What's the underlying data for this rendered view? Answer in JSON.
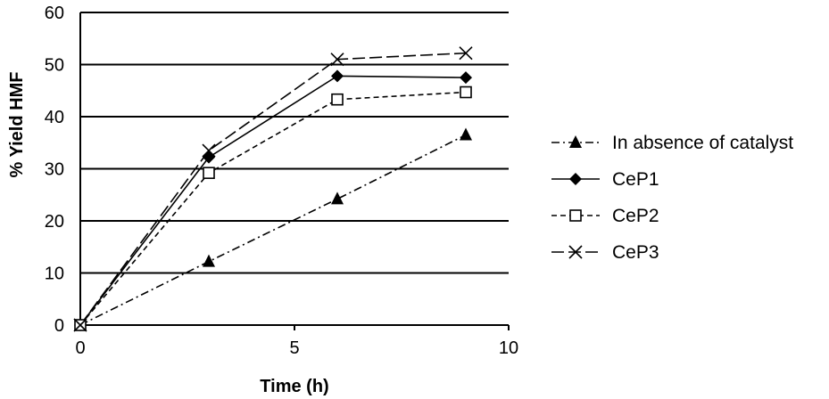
{
  "chart_data": {
    "type": "line",
    "title": "",
    "xlabel": "Time (h)",
    "ylabel": "% Yield HMF",
    "xlim": [
      0,
      10
    ],
    "ylim": [
      0,
      60
    ],
    "xticks": [
      "0",
      "5",
      "10"
    ],
    "yticks": [
      "0",
      "10",
      "20",
      "30",
      "40",
      "50",
      "60"
    ],
    "grid": "horizontal major gridlines",
    "legend_position": "right",
    "series": [
      {
        "name": "In absence of catalyst",
        "marker": "triangle",
        "line_style": "dash-dot",
        "x": [
          0,
          3,
          6,
          9
        ],
        "y": [
          0,
          12.2,
          24.2,
          36.5
        ]
      },
      {
        "name": "CeP1",
        "marker": "diamond",
        "line_style": "solid",
        "x": [
          0,
          3,
          6,
          9
        ],
        "y": [
          0,
          32.2,
          47.8,
          47.5
        ]
      },
      {
        "name": "CeP2",
        "marker": "open-square",
        "line_style": "short-dash",
        "x": [
          0,
          3,
          6,
          9
        ],
        "y": [
          0,
          29.2,
          43.3,
          44.7
        ]
      },
      {
        "name": "CeP3",
        "marker": "x-cross",
        "line_style": "long-dash",
        "x": [
          0,
          3,
          6,
          9
        ],
        "y": [
          0,
          33.5,
          51.0,
          52.2
        ]
      }
    ]
  }
}
